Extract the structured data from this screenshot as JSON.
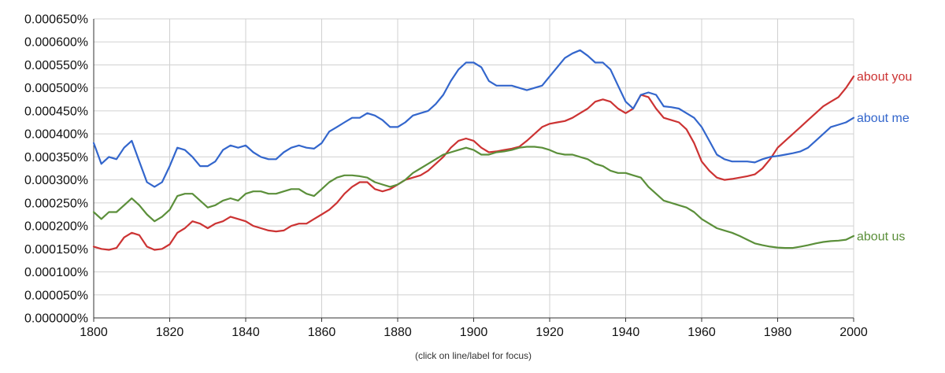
{
  "chart_data": {
    "type": "line",
    "title": "",
    "xlabel": "",
    "ylabel": "",
    "xlim": [
      1800,
      2000
    ],
    "ylim": [
      0,
      6.5e-06
    ],
    "grid": true,
    "legend": "right",
    "x_ticks": [
      "1800",
      "1820",
      "1840",
      "1860",
      "1880",
      "1900",
      "1920",
      "1940",
      "1960",
      "1980",
      "2000"
    ],
    "y_ticks": [
      "0.000000%",
      "0.000050%",
      "0.000100%",
      "0.000150%",
      "0.000200%",
      "0.000250%",
      "0.000300%",
      "0.000350%",
      "0.000400%",
      "0.000450%",
      "0.000500%",
      "0.000550%",
      "0.000600%",
      "0.000650%"
    ],
    "x": [
      1800,
      1802,
      1804,
      1806,
      1808,
      1810,
      1812,
      1814,
      1816,
      1818,
      1820,
      1822,
      1824,
      1826,
      1828,
      1830,
      1832,
      1834,
      1836,
      1838,
      1840,
      1842,
      1844,
      1846,
      1848,
      1850,
      1852,
      1854,
      1856,
      1858,
      1860,
      1862,
      1864,
      1866,
      1868,
      1870,
      1872,
      1874,
      1876,
      1878,
      1880,
      1882,
      1884,
      1886,
      1888,
      1890,
      1892,
      1894,
      1896,
      1898,
      1900,
      1902,
      1904,
      1906,
      1908,
      1910,
      1912,
      1914,
      1916,
      1918,
      1920,
      1922,
      1924,
      1926,
      1928,
      1930,
      1932,
      1934,
      1936,
      1938,
      1940,
      1942,
      1944,
      1946,
      1948,
      1950,
      1952,
      1954,
      1956,
      1958,
      1960,
      1962,
      1964,
      1966,
      1968,
      1970,
      1972,
      1974,
      1976,
      1978,
      1980,
      1982,
      1984,
      1986,
      1988,
      1990,
      1992,
      1994,
      1996,
      1998,
      2000
    ],
    "series": [
      {
        "name": "about you",
        "color": "#cc3333",
        "values": [
          1.55e-06,
          1.5e-06,
          1.48e-06,
          1.52e-06,
          1.75e-06,
          1.85e-06,
          1.8e-06,
          1.55e-06,
          1.48e-06,
          1.5e-06,
          1.6e-06,
          1.85e-06,
          1.95e-06,
          2.1e-06,
          2.05e-06,
          1.95e-06,
          2.05e-06,
          2.1e-06,
          2.2e-06,
          2.15e-06,
          2.1e-06,
          2e-06,
          1.95e-06,
          1.9e-06,
          1.88e-06,
          1.9e-06,
          2e-06,
          2.05e-06,
          2.05e-06,
          2.15e-06,
          2.25e-06,
          2.35e-06,
          2.5e-06,
          2.7e-06,
          2.85e-06,
          2.95e-06,
          2.95e-06,
          2.8e-06,
          2.75e-06,
          2.8e-06,
          2.9e-06,
          3e-06,
          3.05e-06,
          3.1e-06,
          3.2e-06,
          3.35e-06,
          3.5e-06,
          3.7e-06,
          3.85e-06,
          3.9e-06,
          3.85e-06,
          3.7e-06,
          3.6e-06,
          3.62e-06,
          3.65e-06,
          3.68e-06,
          3.72e-06,
          3.85e-06,
          4e-06,
          4.15e-06,
          4.22e-06,
          4.25e-06,
          4.28e-06,
          4.35e-06,
          4.45e-06,
          4.55e-06,
          4.7e-06,
          4.75e-06,
          4.7e-06,
          4.55e-06,
          4.45e-06,
          4.55e-06,
          4.85e-06,
          4.8e-06,
          4.55e-06,
          4.35e-06,
          4.3e-06,
          4.25e-06,
          4.1e-06,
          3.8e-06,
          3.4e-06,
          3.2e-06,
          3.05e-06,
          3e-06,
          3.02e-06,
          3.05e-06,
          3.08e-06,
          3.12e-06,
          3.25e-06,
          3.45e-06,
          3.7e-06,
          3.85e-06,
          4e-06,
          4.15e-06,
          4.3e-06,
          4.45e-06,
          4.6e-06,
          4.7e-06,
          4.8e-06,
          5e-06,
          5.25e-06
        ]
      },
      {
        "name": "about me",
        "color": "#3366cc",
        "values": [
          3.8e-06,
          3.35e-06,
          3.5e-06,
          3.45e-06,
          3.7e-06,
          3.85e-06,
          3.4e-06,
          2.95e-06,
          2.85e-06,
          2.95e-06,
          3.3e-06,
          3.7e-06,
          3.65e-06,
          3.5e-06,
          3.3e-06,
          3.3e-06,
          3.4e-06,
          3.65e-06,
          3.75e-06,
          3.7e-06,
          3.75e-06,
          3.6e-06,
          3.5e-06,
          3.45e-06,
          3.45e-06,
          3.6e-06,
          3.7e-06,
          3.75e-06,
          3.7e-06,
          3.68e-06,
          3.8e-06,
          4.05e-06,
          4.15e-06,
          4.25e-06,
          4.35e-06,
          4.35e-06,
          4.45e-06,
          4.4e-06,
          4.3e-06,
          4.15e-06,
          4.15e-06,
          4.25e-06,
          4.4e-06,
          4.45e-06,
          4.5e-06,
          4.65e-06,
          4.85e-06,
          5.15e-06,
          5.4e-06,
          5.55e-06,
          5.55e-06,
          5.45e-06,
          5.15e-06,
          5.05e-06,
          5.05e-06,
          5.05e-06,
          5e-06,
          4.95e-06,
          5e-06,
          5.05e-06,
          5.25e-06,
          5.45e-06,
          5.65e-06,
          5.75e-06,
          5.82e-06,
          5.7e-06,
          5.55e-06,
          5.55e-06,
          5.4e-06,
          5.05e-06,
          4.7e-06,
          4.55e-06,
          4.85e-06,
          4.9e-06,
          4.85e-06,
          4.6e-06,
          4.58e-06,
          4.55e-06,
          4.45e-06,
          4.35e-06,
          4.15e-06,
          3.85e-06,
          3.55e-06,
          3.45e-06,
          3.4e-06,
          3.4e-06,
          3.4e-06,
          3.38e-06,
          3.45e-06,
          3.5e-06,
          3.52e-06,
          3.55e-06,
          3.58e-06,
          3.62e-06,
          3.7e-06,
          3.85e-06,
          4e-06,
          4.15e-06,
          4.2e-06,
          4.25e-06,
          4.35e-06
        ]
      },
      {
        "name": "about us",
        "color": "#5b8f3a",
        "values": [
          2.3e-06,
          2.15e-06,
          2.3e-06,
          2.3e-06,
          2.45e-06,
          2.6e-06,
          2.45e-06,
          2.25e-06,
          2.1e-06,
          2.2e-06,
          2.35e-06,
          2.65e-06,
          2.7e-06,
          2.7e-06,
          2.55e-06,
          2.4e-06,
          2.45e-06,
          2.55e-06,
          2.6e-06,
          2.55e-06,
          2.7e-06,
          2.75e-06,
          2.75e-06,
          2.7e-06,
          2.7e-06,
          2.75e-06,
          2.8e-06,
          2.8e-06,
          2.7e-06,
          2.65e-06,
          2.8e-06,
          2.95e-06,
          3.05e-06,
          3.1e-06,
          3.1e-06,
          3.08e-06,
          3.05e-06,
          2.95e-06,
          2.9e-06,
          2.85e-06,
          2.9e-06,
          3e-06,
          3.15e-06,
          3.25e-06,
          3.35e-06,
          3.45e-06,
          3.55e-06,
          3.6e-06,
          3.65e-06,
          3.7e-06,
          3.65e-06,
          3.55e-06,
          3.55e-06,
          3.6e-06,
          3.62e-06,
          3.65e-06,
          3.7e-06,
          3.72e-06,
          3.72e-06,
          3.7e-06,
          3.65e-06,
          3.58e-06,
          3.55e-06,
          3.55e-06,
          3.5e-06,
          3.45e-06,
          3.35e-06,
          3.3e-06,
          3.2e-06,
          3.15e-06,
          3.15e-06,
          3.1e-06,
          3.05e-06,
          2.85e-06,
          2.7e-06,
          2.55e-06,
          2.5e-06,
          2.45e-06,
          2.4e-06,
          2.3e-06,
          2.15e-06,
          2.05e-06,
          1.95e-06,
          1.9e-06,
          1.85e-06,
          1.78e-06,
          1.7e-06,
          1.62e-06,
          1.58e-06,
          1.55e-06,
          1.53e-06,
          1.52e-06,
          1.52e-06,
          1.55e-06,
          1.58e-06,
          1.62e-06,
          1.65e-06,
          1.67e-06,
          1.68e-06,
          1.7e-06,
          1.78e-06
        ]
      }
    ],
    "note": "(click on line/label for focus)"
  }
}
